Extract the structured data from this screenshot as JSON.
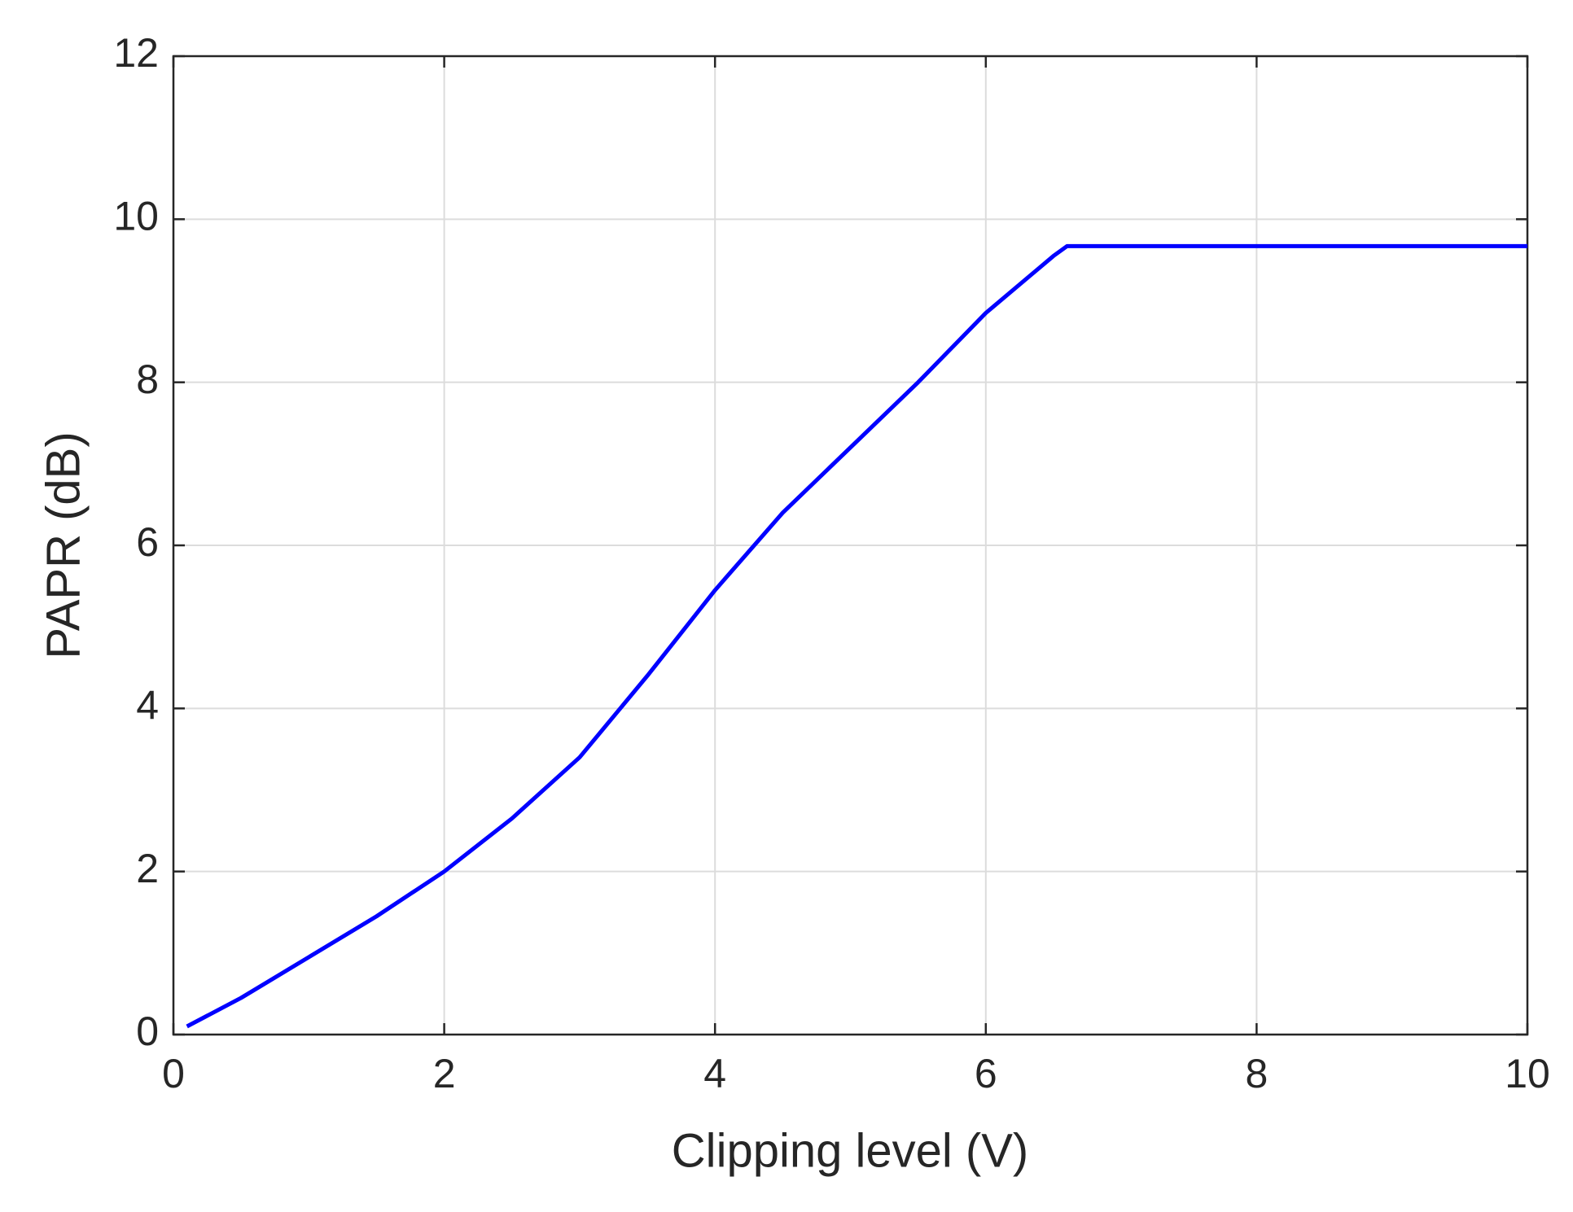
{
  "chart_data": {
    "type": "line",
    "xlabel": "Clipping level (V)",
    "ylabel": "PAPR (dB)",
    "x": [
      0.1,
      0.5,
      1,
      1.5,
      2,
      2.5,
      3,
      3.5,
      4,
      4.5,
      5,
      5.5,
      6,
      6.5,
      6.6,
      7,
      8,
      9,
      10
    ],
    "series": [
      {
        "color": "#0000ff",
        "values": [
          0.1,
          0.45,
          0.95,
          1.45,
          2.0,
          2.65,
          3.4,
          4.4,
          5.45,
          6.4,
          7.2,
          8.0,
          8.85,
          9.55,
          9.67,
          9.67,
          9.67,
          9.67,
          9.67
        ]
      }
    ],
    "xlim": [
      0,
      10
    ],
    "xticks": [
      0,
      2,
      4,
      6,
      8,
      10
    ],
    "ylim": [
      0,
      12
    ],
    "yticks": [
      0,
      2,
      4,
      6,
      8,
      10,
      12
    ],
    "grid": true
  }
}
